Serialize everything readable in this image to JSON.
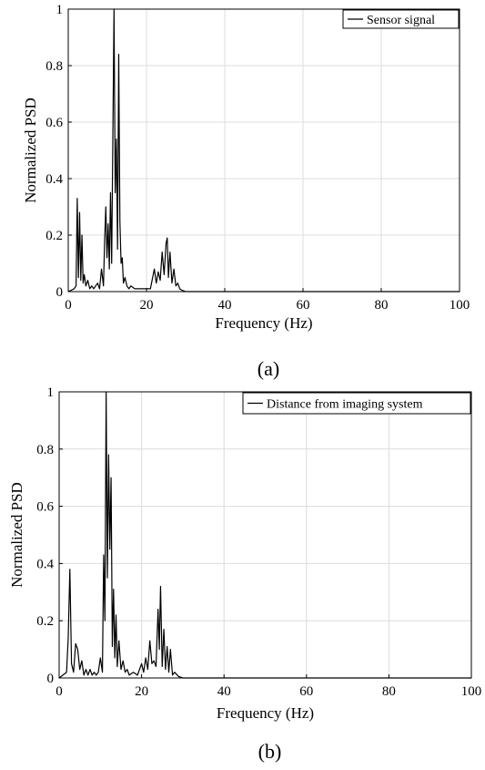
{
  "chart_data": [
    {
      "type": "line",
      "panel_label": "(a)",
      "xlabel": "Frequency (Hz)",
      "ylabel": "Normalized PSD",
      "xlim": [
        0,
        100
      ],
      "ylim": [
        0,
        1
      ],
      "xticks": [
        0,
        20,
        40,
        60,
        80,
        100
      ],
      "yticks": [
        0,
        0.2,
        0.4,
        0.6,
        0.8,
        1
      ],
      "xtick_labels": [
        "0",
        "20",
        "40",
        "60",
        "80",
        "100"
      ],
      "ytick_labels": [
        "0",
        "0.2",
        "0.4",
        "0.6",
        "0.8",
        "1"
      ],
      "grid": true,
      "legend_position": "top-right",
      "series": [
        {
          "name": "Sensor signal",
          "color": "#000000",
          "x": [
            0,
            1.5,
            2.0,
            2.3,
            2.6,
            2.9,
            3.2,
            3.5,
            3.8,
            4.1,
            4.5,
            5.0,
            5.5,
            6.0,
            6.5,
            7.0,
            7.5,
            8.0,
            8.5,
            9.0,
            9.3,
            9.6,
            9.9,
            10.2,
            10.5,
            10.8,
            11.1,
            11.4,
            11.7,
            12.0,
            12.3,
            12.6,
            12.9,
            13.2,
            13.5,
            13.8,
            14.1,
            14.5,
            15.0,
            15.5,
            16.0,
            17.0,
            18.0,
            19.0,
            20.0,
            21.0,
            22.0,
            22.5,
            23.0,
            23.5,
            24.0,
            24.5,
            25.0,
            25.3,
            25.6,
            26.0,
            26.5,
            27.0,
            27.5,
            28.0,
            28.5,
            29.0,
            30.0,
            35.0,
            40.0,
            60.0,
            80.0,
            100.0
          ],
          "y": [
            0,
            0.01,
            0.02,
            0.33,
            0.05,
            0.28,
            0.04,
            0.2,
            0.03,
            0.06,
            0.02,
            0.04,
            0.01,
            0.02,
            0.01,
            0.02,
            0.03,
            0.01,
            0.08,
            0.02,
            0.18,
            0.3,
            0.12,
            0.24,
            0.08,
            0.35,
            0.1,
            0.55,
            1.0,
            0.35,
            0.54,
            0.15,
            0.84,
            0.25,
            0.1,
            0.12,
            0.03,
            0.05,
            0.02,
            0.01,
            0.02,
            0.01,
            0.01,
            0.01,
            0.01,
            0.01,
            0.08,
            0.03,
            0.07,
            0.04,
            0.14,
            0.06,
            0.17,
            0.19,
            0.05,
            0.14,
            0.03,
            0.08,
            0.02,
            0.03,
            0.01,
            0.005,
            0,
            0,
            0,
            0,
            0,
            0
          ]
        }
      ]
    },
    {
      "type": "line",
      "panel_label": "(b)",
      "xlabel": "Frequency (Hz)",
      "ylabel": "Normalized PSD",
      "xlim": [
        0,
        100
      ],
      "ylim": [
        0,
        1
      ],
      "xticks": [
        0,
        20,
        40,
        60,
        80,
        100
      ],
      "yticks": [
        0,
        0.2,
        0.4,
        0.6,
        0.8,
        1
      ],
      "xtick_labels": [
        "0",
        "20",
        "40",
        "60",
        "80",
        "100"
      ],
      "ytick_labels": [
        "0",
        "0.2",
        "0.4",
        "0.6",
        "0.8",
        "1"
      ],
      "grid": true,
      "legend_position": "top-right",
      "series": [
        {
          "name": "Distance from imaging system",
          "color": "#000000",
          "x": [
            0,
            1.8,
            2.2,
            2.6,
            3.0,
            3.5,
            4.0,
            4.5,
            5.0,
            5.5,
            6.0,
            6.5,
            7.0,
            7.5,
            8.0,
            8.5,
            9.0,
            9.5,
            10.0,
            10.5,
            10.8,
            11.1,
            11.4,
            11.7,
            12.0,
            12.3,
            12.6,
            12.9,
            13.2,
            13.5,
            13.8,
            14.1,
            14.5,
            15.0,
            15.5,
            16.0,
            16.5,
            17.0,
            18.0,
            19.0,
            20.0,
            20.5,
            21.0,
            21.5,
            22.0,
            22.5,
            23.0,
            23.5,
            24.0,
            24.3,
            24.6,
            25.0,
            25.4,
            25.8,
            26.2,
            26.6,
            27.0,
            27.5,
            28.0,
            29.0,
            30.0,
            40.0,
            60.0,
            80.0,
            100.0
          ],
          "y": [
            0,
            0.02,
            0.14,
            0.38,
            0.05,
            0.02,
            0.12,
            0.1,
            0.03,
            0.06,
            0.01,
            0.03,
            0.01,
            0.03,
            0.01,
            0.02,
            0.01,
            0.02,
            0.07,
            0.02,
            0.43,
            0.2,
            1.0,
            0.35,
            0.78,
            0.45,
            0.7,
            0.11,
            0.31,
            0.07,
            0.22,
            0.04,
            0.13,
            0.03,
            0.06,
            0.02,
            0.03,
            0.01,
            0.02,
            0.01,
            0.05,
            0.02,
            0.07,
            0.03,
            0.13,
            0.05,
            0.06,
            0.04,
            0.24,
            0.1,
            0.32,
            0.04,
            0.17,
            0.03,
            0.11,
            0.02,
            0.1,
            0.01,
            0.02,
            0.005,
            0,
            0,
            0,
            0,
            0
          ]
        }
      ]
    }
  ]
}
